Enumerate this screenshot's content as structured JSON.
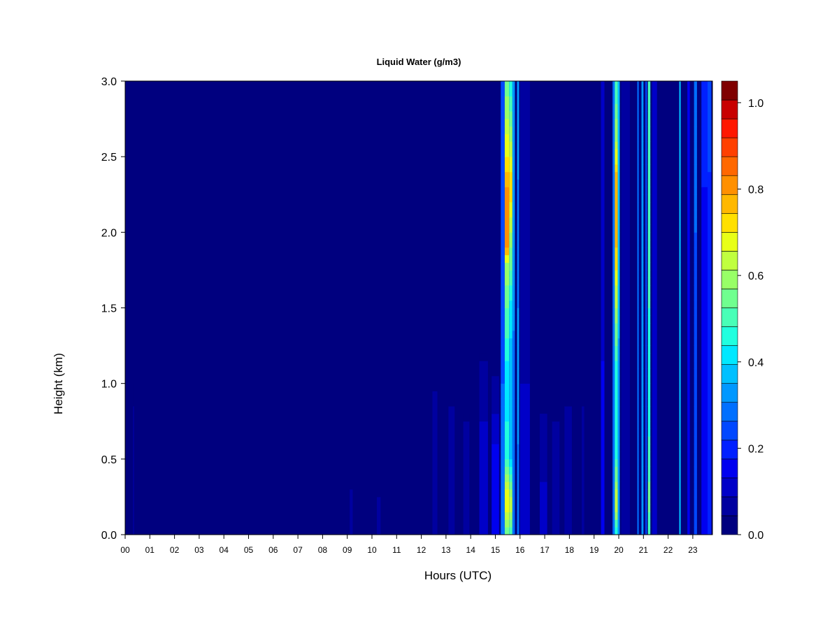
{
  "chart_data": {
    "type": "heatmap",
    "title": "Liquid Water (g/m3)",
    "xlabel": "Hours (UTC)",
    "ylabel": "Height (km)",
    "xlim": [
      0,
      24
    ],
    "ylim": [
      0,
      3.0
    ],
    "x_ticks": [
      "00",
      "01",
      "02",
      "03",
      "04",
      "05",
      "06",
      "07",
      "08",
      "09",
      "10",
      "11",
      "12",
      "13",
      "14",
      "15",
      "16",
      "17",
      "18",
      "19",
      "20",
      "21",
      "22",
      "23"
    ],
    "y_ticks": [
      "0.0",
      "0.5",
      "1.0",
      "1.5",
      "2.0",
      "2.5",
      "3.0"
    ],
    "colorbar": {
      "range": [
        0,
        1.05
      ],
      "ticks": [
        "0.0",
        "0.2",
        "0.4",
        "0.6",
        "0.8",
        "1.0"
      ],
      "levels": [
        0,
        0.05,
        0.1,
        0.15,
        0.2,
        0.25,
        0.3,
        0.35,
        0.4,
        0.45,
        0.5,
        0.55,
        0.6,
        0.65,
        0.7,
        0.75,
        0.8,
        0.85,
        0.9,
        0.95,
        1.0,
        1.05
      ],
      "colors": [
        "#00007f",
        "#0000a0",
        "#0000c8",
        "#0000f0",
        "#0020ff",
        "#0048ff",
        "#0070ff",
        "#0098ff",
        "#00c0ff",
        "#00e8ff",
        "#20ffdf",
        "#48ffb7",
        "#70ff8f",
        "#98ff67",
        "#c0ff3f",
        "#e8ff17",
        "#ffe000",
        "#ffb800",
        "#ff9000",
        "#ff6800",
        "#ff4000",
        "#ff1800",
        "#c80000",
        "#7f0000"
      ]
    },
    "background_value": 0.02,
    "columns": [
      {
        "x": 0.32,
        "w": 0.03,
        "profile": [
          [
            0,
            0.09
          ],
          [
            0.7,
            0.07
          ],
          [
            1.0,
            0.03
          ]
        ]
      },
      {
        "x": 9.1,
        "w": 0.12,
        "profile": [
          [
            0,
            0.08
          ],
          [
            0.3,
            0.06
          ],
          [
            0.35,
            0.02
          ]
        ]
      },
      {
        "x": 10.2,
        "w": 0.15,
        "profile": [
          [
            0,
            0.07
          ],
          [
            0.25,
            0.05
          ],
          [
            0.3,
            0.02
          ]
        ]
      },
      {
        "x": 12.45,
        "w": 0.2,
        "profile": [
          [
            0,
            0.09
          ],
          [
            0.9,
            0.07
          ],
          [
            1.0,
            0.03
          ]
        ]
      },
      {
        "x": 13.1,
        "w": 0.25,
        "profile": [
          [
            0,
            0.1
          ],
          [
            0.8,
            0.06
          ],
          [
            0.9,
            0.03
          ]
        ]
      },
      {
        "x": 13.7,
        "w": 0.25,
        "profile": [
          [
            0,
            0.08
          ],
          [
            0.7,
            0.06
          ],
          [
            0.8,
            0.03
          ]
        ]
      },
      {
        "x": 14.35,
        "w": 0.35,
        "profile": [
          [
            0,
            0.15
          ],
          [
            0.5,
            0.12
          ],
          [
            1.0,
            0.08
          ],
          [
            1.2,
            0.04
          ]
        ]
      },
      {
        "x": 14.85,
        "w": 0.3,
        "profile": [
          [
            0,
            0.2
          ],
          [
            0.6,
            0.15
          ],
          [
            0.9,
            0.08
          ],
          [
            1.1,
            0.04
          ]
        ]
      },
      {
        "x": 15.22,
        "w": 0.16,
        "profile": [
          [
            0,
            0.35
          ],
          [
            0.5,
            0.3
          ],
          [
            1.0,
            0.3
          ],
          [
            1.8,
            0.28
          ],
          [
            3.0,
            0.3
          ]
        ]
      },
      {
        "x": 15.38,
        "w": 0.18,
        "profile": [
          [
            0,
            0.6
          ],
          [
            0.2,
            0.82
          ],
          [
            0.5,
            0.55
          ],
          [
            1.0,
            0.45
          ],
          [
            1.8,
            0.7
          ],
          [
            1.9,
            0.9
          ],
          [
            2.2,
            0.95
          ],
          [
            2.5,
            0.8
          ],
          [
            3.0,
            0.6
          ]
        ]
      },
      {
        "x": 15.56,
        "w": 0.13,
        "profile": [
          [
            0,
            0.55
          ],
          [
            0.2,
            0.75
          ],
          [
            0.5,
            0.45
          ],
          [
            1.0,
            0.4
          ],
          [
            1.5,
            0.48
          ],
          [
            2.0,
            0.7
          ],
          [
            2.3,
            0.85
          ],
          [
            2.7,
            0.65
          ],
          [
            3.0,
            0.5
          ]
        ]
      },
      {
        "x": 15.69,
        "w": 0.1,
        "profile": [
          [
            0,
            0.3
          ],
          [
            1.0,
            0.32
          ],
          [
            2.0,
            0.4
          ],
          [
            3.0,
            0.35
          ]
        ]
      },
      {
        "x": 15.88,
        "w": 0.08,
        "profile": [
          [
            0,
            0.3
          ],
          [
            1.0,
            0.38
          ],
          [
            2.0,
            0.32
          ],
          [
            3.0,
            0.4
          ]
        ]
      },
      {
        "x": 16.0,
        "w": 0.4,
        "profile": [
          [
            0,
            0.12
          ],
          [
            1.0,
            0.1
          ],
          [
            3.0,
            0.08
          ]
        ]
      },
      {
        "x": 16.8,
        "w": 0.3,
        "profile": [
          [
            0,
            0.12
          ],
          [
            0.5,
            0.09
          ],
          [
            0.8,
            0.05
          ]
        ]
      },
      {
        "x": 17.3,
        "w": 0.3,
        "profile": [
          [
            0,
            0.1
          ],
          [
            0.6,
            0.08
          ],
          [
            0.8,
            0.04
          ]
        ]
      },
      {
        "x": 17.8,
        "w": 0.3,
        "profile": [
          [
            0,
            0.1
          ],
          [
            0.7,
            0.07
          ],
          [
            0.9,
            0.04
          ]
        ]
      },
      {
        "x": 18.5,
        "w": 0.1,
        "profile": [
          [
            0,
            0.09
          ],
          [
            0.8,
            0.06
          ],
          [
            0.9,
            0.03
          ]
        ]
      },
      {
        "x": 19.28,
        "w": 0.14,
        "profile": [
          [
            0,
            0.18
          ],
          [
            1.5,
            0.14
          ],
          [
            3.0,
            0.12
          ]
        ]
      },
      {
        "x": 19.75,
        "w": 0.14,
        "profile": [
          [
            0,
            0.3
          ],
          [
            1.0,
            0.33
          ],
          [
            2.0,
            0.35
          ],
          [
            3.0,
            0.3
          ]
        ]
      },
      {
        "x": 19.84,
        "w": 0.12,
        "profile": [
          [
            0,
            0.5
          ],
          [
            0.2,
            0.75
          ],
          [
            0.5,
            0.55
          ],
          [
            1.0,
            0.5
          ],
          [
            1.9,
            0.85
          ],
          [
            2.3,
            0.9
          ],
          [
            2.6,
            0.7
          ],
          [
            3.0,
            0.55
          ]
        ]
      },
      {
        "x": 19.96,
        "w": 0.08,
        "profile": [
          [
            0,
            0.35
          ],
          [
            1.0,
            0.38
          ],
          [
            2.0,
            0.45
          ],
          [
            3.0,
            0.4
          ]
        ]
      },
      {
        "x": 20.1,
        "w": 0.35,
        "profile": [
          [
            0,
            0.1
          ],
          [
            1.5,
            0.08
          ],
          [
            3.0,
            0.07
          ]
        ]
      },
      {
        "x": 20.75,
        "w": 0.06,
        "profile": [
          [
            0,
            0.3
          ],
          [
            3.0,
            0.35
          ]
        ]
      },
      {
        "x": 20.92,
        "w": 0.08,
        "profile": [
          [
            0,
            0.35
          ],
          [
            1.0,
            0.38
          ],
          [
            3.0,
            0.4
          ]
        ]
      },
      {
        "x": 21.08,
        "w": 0.06,
        "profile": [
          [
            0,
            0.28
          ],
          [
            3.0,
            0.3
          ]
        ]
      },
      {
        "x": 21.18,
        "w": 0.1,
        "profile": [
          [
            0,
            0.55
          ],
          [
            0.2,
            0.62
          ],
          [
            1.0,
            0.5
          ],
          [
            2.0,
            0.6
          ],
          [
            3.0,
            0.55
          ]
        ]
      },
      {
        "x": 21.35,
        "w": 0.2,
        "profile": [
          [
            0,
            0.12
          ],
          [
            3.0,
            0.1
          ]
        ]
      },
      {
        "x": 22.45,
        "w": 0.06,
        "profile": [
          [
            0,
            0.4
          ],
          [
            1.5,
            0.45
          ],
          [
            3.0,
            0.4
          ]
        ]
      },
      {
        "x": 22.78,
        "w": 0.1,
        "profile": [
          [
            0,
            0.15
          ],
          [
            3.0,
            0.2
          ]
        ]
      },
      {
        "x": 23.05,
        "w": 0.12,
        "profile": [
          [
            0,
            0.3
          ],
          [
            1.0,
            0.25
          ],
          [
            3.0,
            0.35
          ]
        ]
      },
      {
        "x": 23.35,
        "w": 0.3,
        "profile": [
          [
            0,
            0.15
          ],
          [
            2.0,
            0.18
          ],
          [
            3.0,
            0.25
          ]
        ]
      },
      {
        "x": 23.6,
        "w": 0.15,
        "profile": [
          [
            0,
            0.2
          ],
          [
            2.0,
            0.22
          ],
          [
            3.0,
            0.3
          ]
        ]
      }
    ]
  }
}
